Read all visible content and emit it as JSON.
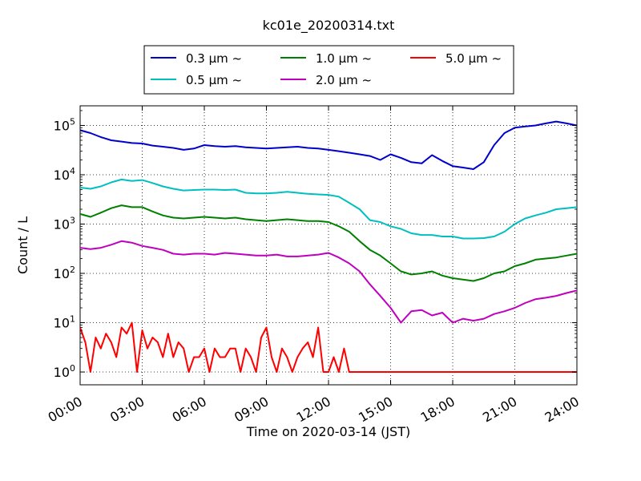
{
  "chart_data": {
    "type": "line",
    "title": "kc01e_20200314.txt",
    "xlabel": "Time on 2020-03-14 (JST)",
    "ylabel": "Count / L",
    "yscale": "log",
    "ylim": [
      0.55,
      250000
    ],
    "xlim": [
      "00:00",
      "24:00"
    ],
    "x_ticks": [
      "00:00",
      "03:00",
      "06:00",
      "09:00",
      "12:00",
      "15:00",
      "18:00",
      "21:00",
      "24:00"
    ],
    "y_ticks": [
      {
        "value": 1,
        "label": "10",
        "exp": "0"
      },
      {
        "value": 10,
        "label": "10",
        "exp": "1"
      },
      {
        "value": 100,
        "label": "10",
        "exp": "2"
      },
      {
        "value": 1000,
        "label": "10",
        "exp": "3"
      },
      {
        "value": 10000,
        "label": "10",
        "exp": "4"
      },
      {
        "value": 100000,
        "label": "10",
        "exp": "5"
      }
    ],
    "grid": true,
    "legend_position": "top-center",
    "x_unit": "hours",
    "series": [
      {
        "name": "0.3 μm ~",
        "color": "#0000cc",
        "x": [
          0,
          0.5,
          1,
          1.5,
          2,
          2.5,
          3,
          3.5,
          4,
          4.5,
          5,
          5.5,
          6,
          6.5,
          7,
          7.5,
          8,
          8.5,
          9,
          9.5,
          10,
          10.5,
          11,
          11.5,
          12,
          12.5,
          13,
          13.5,
          14,
          14.5,
          15,
          15.5,
          16,
          16.5,
          17,
          17.5,
          18,
          18.5,
          19,
          19.5,
          20,
          20.5,
          21,
          21.5,
          22,
          22.5,
          23,
          23.5,
          24
        ],
        "values": [
          80000,
          70000,
          58000,
          50000,
          47000,
          44000,
          43000,
          39000,
          37000,
          35000,
          32000,
          34000,
          40000,
          38000,
          37000,
          38000,
          36000,
          35000,
          34000,
          35000,
          36000,
          37000,
          35000,
          34000,
          32000,
          30000,
          28000,
          26000,
          24000,
          20000,
          26000,
          22000,
          18000,
          17000,
          25000,
          19000,
          15000,
          14000,
          13000,
          18000,
          40000,
          70000,
          90000,
          95000,
          100000,
          110000,
          120000,
          110000,
          100000
        ]
      },
      {
        "name": "0.5 μm ~",
        "color": "#00bfbf",
        "x": [
          0,
          0.5,
          1,
          1.5,
          2,
          2.5,
          3,
          3.5,
          4,
          4.5,
          5,
          5.5,
          6,
          6.5,
          7,
          7.5,
          8,
          8.5,
          9,
          9.5,
          10,
          10.5,
          11,
          11.5,
          12,
          12.5,
          13,
          13.5,
          14,
          14.5,
          15,
          15.5,
          16,
          16.5,
          17,
          17.5,
          18,
          18.5,
          19,
          19.5,
          20,
          20.5,
          21,
          21.5,
          22,
          22.5,
          23,
          23.5,
          24
        ],
        "values": [
          5500,
          5200,
          5800,
          7000,
          8000,
          7500,
          7800,
          6800,
          5800,
          5200,
          4800,
          4900,
          5000,
          5000,
          4900,
          5000,
          4300,
          4200,
          4200,
          4300,
          4500,
          4300,
          4100,
          4000,
          3900,
          3600,
          2700,
          2000,
          1200,
          1100,
          900,
          800,
          650,
          600,
          600,
          560,
          560,
          510,
          510,
          520,
          560,
          700,
          1000,
          1300,
          1500,
          1700,
          2000,
          2100,
          2200
        ]
      },
      {
        "name": "1.0 μm ~",
        "color": "#008000",
        "x": [
          0,
          0.5,
          1,
          1.5,
          2,
          2.5,
          3,
          3.5,
          4,
          4.5,
          5,
          5.5,
          6,
          6.5,
          7,
          7.5,
          8,
          8.5,
          9,
          9.5,
          10,
          10.5,
          11,
          11.5,
          12,
          12.5,
          13,
          13.5,
          14,
          14.5,
          15,
          15.5,
          16,
          16.5,
          17,
          17.5,
          18,
          18.5,
          19,
          19.5,
          20,
          20.5,
          21,
          21.5,
          22,
          22.5,
          23,
          23.5,
          24
        ],
        "values": [
          1600,
          1400,
          1700,
          2100,
          2400,
          2200,
          2200,
          1800,
          1500,
          1350,
          1300,
          1350,
          1400,
          1350,
          1300,
          1350,
          1250,
          1200,
          1150,
          1200,
          1250,
          1200,
          1150,
          1150,
          1100,
          900,
          700,
          450,
          300,
          230,
          160,
          110,
          95,
          100,
          110,
          90,
          80,
          75,
          70,
          80,
          100,
          110,
          140,
          160,
          190,
          200,
          210,
          230,
          250
        ]
      },
      {
        "name": "2.0 μm ~",
        "color": "#bf00bf",
        "x": [
          0,
          0.5,
          1,
          1.5,
          2,
          2.5,
          3,
          3.5,
          4,
          4.5,
          5,
          5.5,
          6,
          6.5,
          7,
          7.5,
          8,
          8.5,
          9,
          9.5,
          10,
          10.5,
          11,
          11.5,
          12,
          12.5,
          13,
          13.5,
          14,
          14.5,
          15,
          15.5,
          16,
          16.5,
          17,
          17.5,
          18,
          18.5,
          19,
          19.5,
          20,
          20.5,
          21,
          21.5,
          22,
          22.5,
          23,
          23.5,
          24
        ],
        "values": [
          330,
          310,
          330,
          380,
          450,
          420,
          360,
          330,
          300,
          250,
          240,
          250,
          250,
          240,
          260,
          250,
          240,
          230,
          230,
          240,
          220,
          220,
          230,
          240,
          260,
          210,
          160,
          110,
          60,
          35,
          20,
          10,
          17,
          18,
          14,
          16,
          10,
          12,
          11,
          12,
          15,
          17,
          20,
          25,
          30,
          32,
          35,
          40,
          45
        ]
      },
      {
        "name": "5.0 μm ~",
        "color": "#ff0000",
        "x": [
          0,
          0.25,
          0.5,
          0.75,
          1,
          1.25,
          1.5,
          1.75,
          2,
          2.25,
          2.5,
          2.75,
          3,
          3.25,
          3.5,
          3.75,
          4,
          4.25,
          4.5,
          4.75,
          5,
          5.25,
          5.5,
          5.75,
          6,
          6.25,
          6.5,
          6.75,
          7,
          7.25,
          7.5,
          7.75,
          8,
          8.25,
          8.5,
          8.75,
          9,
          9.25,
          9.5,
          9.75,
          10,
          10.25,
          10.5,
          10.75,
          11,
          11.25,
          11.5,
          11.75,
          12,
          12.25,
          12.5,
          12.75,
          13,
          13.5,
          14,
          14.5,
          15,
          15.5,
          16,
          16.5,
          17,
          17.5,
          18,
          18.5,
          19,
          19.5,
          20,
          20.5,
          21,
          21.5,
          22,
          22.5,
          23,
          23.5,
          24
        ],
        "values": [
          8,
          4,
          1,
          5,
          3,
          6,
          4,
          2,
          8,
          6,
          10,
          1,
          7,
          3,
          5,
          4,
          2,
          6,
          2,
          4,
          3,
          1,
          2,
          2,
          3,
          1,
          3,
          2,
          2,
          3,
          3,
          1,
          3,
          2,
          1,
          5,
          8,
          2,
          1,
          3,
          2,
          1,
          2,
          3,
          4,
          2,
          8,
          1,
          1,
          2,
          1,
          3,
          1,
          1,
          1,
          1,
          1,
          1,
          1,
          1,
          1,
          1,
          1,
          1,
          1,
          1,
          1,
          1,
          1,
          1,
          1,
          1,
          1,
          1,
          1
        ]
      }
    ]
  }
}
